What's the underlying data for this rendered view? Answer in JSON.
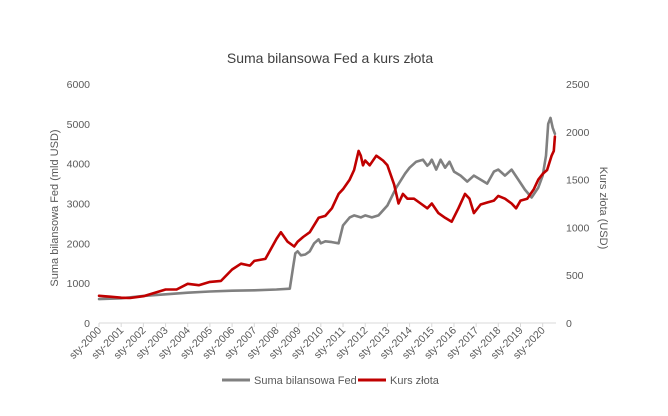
{
  "chart_data": {
    "type": "line",
    "title": "Suma bilansowa Fed a kurs złota",
    "y_left_label": "Suma bilansowa Fed (mld USD)",
    "y_right_label": "Kurs złota (USD)",
    "y_left_lim": [
      0,
      6000
    ],
    "y_right_lim": [
      0,
      2500
    ],
    "y_left_ticks": [
      0,
      1000,
      2000,
      3000,
      4000,
      5000,
      6000
    ],
    "y_right_ticks": [
      0,
      500,
      1000,
      1500,
      2000,
      2500
    ],
    "x_lim": [
      2000.0,
      2020.6
    ],
    "x_tick_labels": [
      "sty-2000",
      "sty-2001",
      "sty-2002",
      "sty-2003",
      "sty-2004",
      "sty-2005",
      "sty-2006",
      "sty-2007",
      "sty-2008",
      "sty-2009",
      "sty-2010",
      "sty-2011",
      "sty-2012",
      "sty-2013",
      "sty-2014",
      "sty-2015",
      "sty-2016",
      "sty-2017",
      "sty-2018",
      "sty-2019",
      "sty-2020"
    ],
    "grid": false,
    "legend_position": "bottom",
    "series": [
      {
        "name": "Suma bilansowa Fed",
        "axis": "left",
        "color": "#808080",
        "x": [
          2000.0,
          2001.0,
          2002.0,
          2003.0,
          2004.0,
          2005.0,
          2006.0,
          2007.0,
          2008.0,
          2008.6,
          2008.75,
          2008.85,
          2008.95,
          2009.1,
          2009.3,
          2009.5,
          2009.7,
          2009.9,
          2010.0,
          2010.2,
          2010.5,
          2010.8,
          2011.0,
          2011.3,
          2011.5,
          2011.8,
          2012.0,
          2012.3,
          2012.6,
          2013.0,
          2013.4,
          2013.8,
          2014.0,
          2014.3,
          2014.6,
          2014.8,
          2014.9,
          2015.0,
          2015.2,
          2015.4,
          2015.6,
          2015.8,
          2016.0,
          2016.3,
          2016.6,
          2016.9,
          2017.2,
          2017.5,
          2017.8,
          2018.0,
          2018.3,
          2018.6,
          2018.9,
          2019.2,
          2019.5,
          2019.8,
          2020.0,
          2020.15,
          2020.25,
          2020.35,
          2020.45,
          2020.55
        ],
        "values": [
          600,
          620,
          680,
          720,
          760,
          790,
          810,
          820,
          840,
          860,
          1400,
          1750,
          1800,
          1700,
          1720,
          1800,
          2000,
          2100,
          2000,
          2050,
          2030,
          2000,
          2450,
          2650,
          2700,
          2650,
          2700,
          2650,
          2700,
          2950,
          3400,
          3750,
          3900,
          4050,
          4100,
          3950,
          4000,
          4100,
          3850,
          4100,
          3900,
          4050,
          3800,
          3700,
          3550,
          3700,
          3600,
          3500,
          3800,
          3850,
          3700,
          3850,
          3600,
          3350,
          3150,
          3400,
          3700,
          4200,
          5000,
          5150,
          4900,
          4750
        ]
      },
      {
        "name": "Kurs złota",
        "axis": "right",
        "color": "#c00000",
        "x": [
          2000.0,
          2000.5,
          2001.0,
          2001.4,
          2002.0,
          2002.5,
          2003.0,
          2003.5,
          2004.0,
          2004.5,
          2005.0,
          2005.5,
          2006.0,
          2006.4,
          2006.8,
          2007.0,
          2007.5,
          2008.0,
          2008.2,
          2008.5,
          2008.8,
          2008.95,
          2009.2,
          2009.5,
          2009.9,
          2010.2,
          2010.5,
          2010.8,
          2011.0,
          2011.3,
          2011.5,
          2011.7,
          2011.8,
          2011.9,
          2012.0,
          2012.2,
          2012.5,
          2012.8,
          2013.0,
          2013.3,
          2013.5,
          2013.7,
          2013.9,
          2014.2,
          2014.5,
          2014.8,
          2015.0,
          2015.3,
          2015.6,
          2015.9,
          2016.2,
          2016.5,
          2016.7,
          2016.9,
          2017.2,
          2017.5,
          2017.8,
          2018.0,
          2018.3,
          2018.6,
          2018.8,
          2019.0,
          2019.3,
          2019.6,
          2019.8,
          2020.0,
          2020.2,
          2020.4,
          2020.5,
          2020.55
        ],
        "values": [
          285,
          275,
          265,
          262,
          280,
          315,
          350,
          350,
          410,
          395,
          430,
          440,
          560,
          620,
          600,
          650,
          670,
          880,
          950,
          850,
          800,
          850,
          900,
          950,
          1100,
          1120,
          1200,
          1350,
          1400,
          1500,
          1600,
          1800,
          1750,
          1650,
          1700,
          1650,
          1750,
          1700,
          1650,
          1450,
          1250,
          1350,
          1300,
          1300,
          1250,
          1200,
          1250,
          1150,
          1100,
          1060,
          1200,
          1350,
          1300,
          1150,
          1240,
          1260,
          1280,
          1330,
          1300,
          1250,
          1200,
          1280,
          1300,
          1400,
          1500,
          1560,
          1600,
          1750,
          1800,
          1950
        ]
      }
    ]
  }
}
